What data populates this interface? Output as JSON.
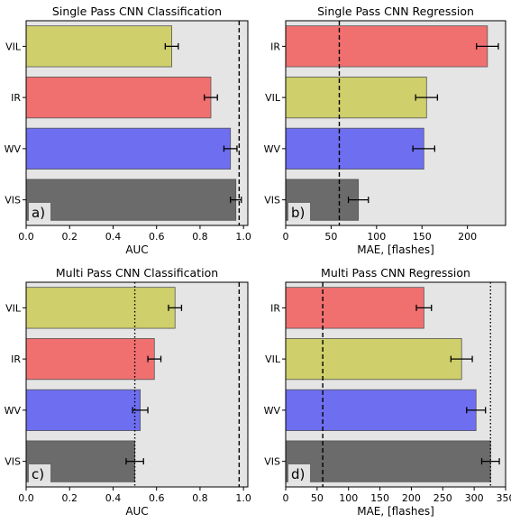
{
  "colors": {
    "VIL": "#cfcf6b",
    "IR": "#f07070",
    "WV": "#6e6ef0",
    "VIS": "#6b6b6b",
    "panel_background": "#e5e5e5",
    "error_bar": "#000000",
    "reference_line": "#000000"
  },
  "chart_data": [
    {
      "type": "bar",
      "orientation": "horizontal",
      "title": "Single Pass CNN Classification",
      "panel_label": "a)",
      "xlabel": "AUC",
      "ylabel": "",
      "xlim": [
        0,
        1.02
      ],
      "xticks": [
        0,
        0.2,
        0.4,
        0.6,
        0.8,
        1.0
      ],
      "xtick_labels": [
        "0.0",
        "0.2",
        "0.4",
        "0.6",
        "0.8",
        "1.0"
      ],
      "categories": [
        "VIL",
        "IR",
        "WV",
        "VIS"
      ],
      "values": [
        0.67,
        0.85,
        0.94,
        0.965
      ],
      "errors": [
        0.03,
        0.03,
        0.03,
        0.025
      ],
      "reference_lines": [
        {
          "x": 0.98,
          "style": "dashed"
        }
      ],
      "grid": false
    },
    {
      "type": "bar",
      "orientation": "horizontal",
      "title": "Single Pass CNN Regression",
      "panel_label": "b)",
      "xlabel": "MAE, [flashes]",
      "ylabel": "",
      "xlim": [
        0,
        242
      ],
      "xticks": [
        0,
        50,
        100,
        150,
        200
      ],
      "xtick_labels": [
        "0",
        "50",
        "100",
        "150",
        "200"
      ],
      "categories": [
        "IR",
        "VIL",
        "WV",
        "VIS"
      ],
      "values": [
        222,
        155,
        152,
        80
      ],
      "errors": [
        12,
        12,
        12,
        11
      ],
      "reference_lines": [
        {
          "x": 59,
          "style": "dashed"
        }
      ],
      "grid": false
    },
    {
      "type": "bar",
      "orientation": "horizontal",
      "title": "Multi Pass CNN Classification",
      "panel_label": "c)",
      "xlabel": "AUC",
      "ylabel": "",
      "xlim": [
        0,
        1.02
      ],
      "xticks": [
        0,
        0.2,
        0.4,
        0.6,
        0.8,
        1.0
      ],
      "xtick_labels": [
        "0.0",
        "0.2",
        "0.4",
        "0.6",
        "0.8",
        "1.0"
      ],
      "categories": [
        "VIL",
        "IR",
        "WV",
        "VIS"
      ],
      "values": [
        0.685,
        0.59,
        0.525,
        0.5
      ],
      "errors": [
        0.03,
        0.03,
        0.035,
        0.04
      ],
      "reference_lines": [
        {
          "x": 0.5,
          "style": "dotted"
        },
        {
          "x": 0.98,
          "style": "dashed"
        }
      ],
      "grid": false
    },
    {
      "type": "bar",
      "orientation": "horizontal",
      "title": "Multi Pass CNN Regression",
      "panel_label": "d)",
      "xlabel": "MAE, [flashes]",
      "ylabel": "",
      "xlim": [
        0,
        350
      ],
      "xticks": [
        0,
        50,
        100,
        150,
        200,
        250,
        300,
        350
      ],
      "xtick_labels": [
        "0",
        "50",
        "100",
        "150",
        "200",
        "250",
        "300",
        "350"
      ],
      "categories": [
        "IR",
        "VIL",
        "WV",
        "VIS"
      ],
      "values": [
        220,
        280,
        303,
        326
      ],
      "errors": [
        12,
        17,
        15,
        14
      ],
      "reference_lines": [
        {
          "x": 59,
          "style": "dashed"
        },
        {
          "x": 326,
          "style": "dotted"
        }
      ],
      "grid": false
    }
  ]
}
